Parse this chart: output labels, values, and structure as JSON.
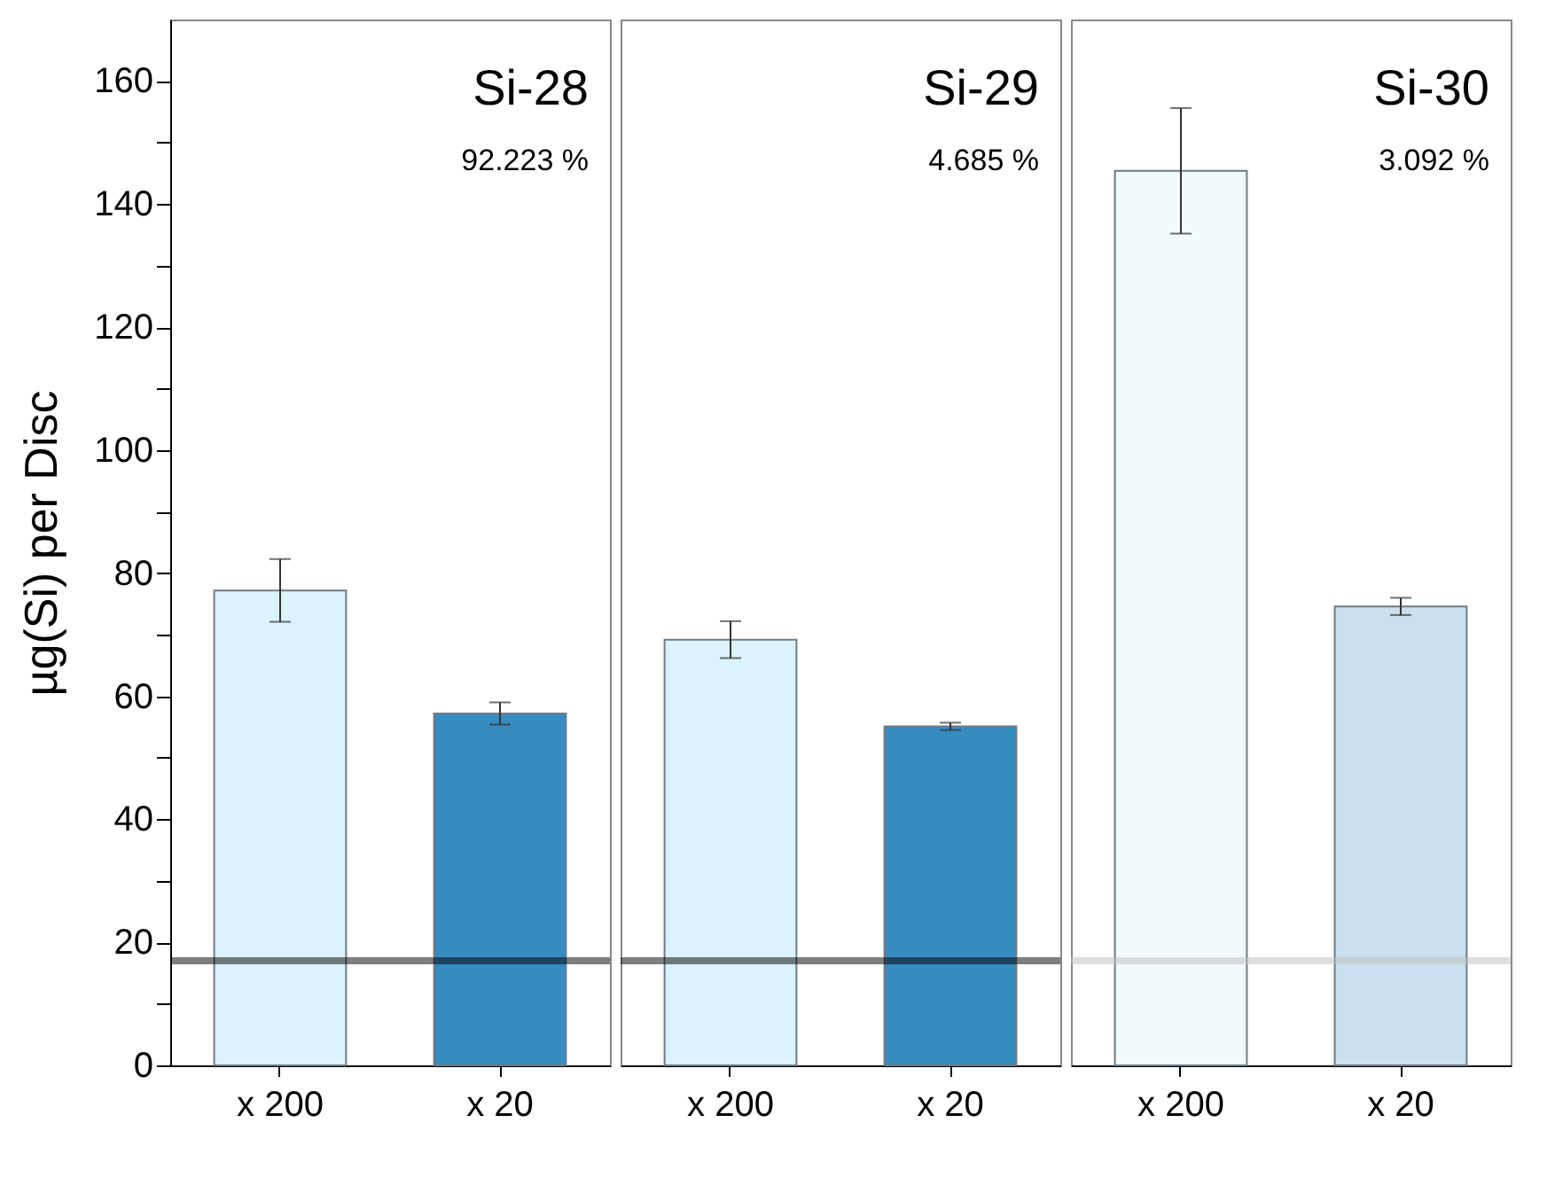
{
  "chart_data": [
    {
      "type": "bar",
      "title": "Si-28",
      "annotations": [
        "92.223 %"
      ],
      "ylabel": "µg(Si) per Disc",
      "categories": [
        "x 200",
        "x 20"
      ],
      "values": [
        77.2,
        57.2
      ],
      "colors": [
        "#dbf3fc",
        "#368bc1"
      ],
      "errors": [
        5.1,
        1.8
      ],
      "ylim": [
        0,
        170
      ],
      "yticks": [
        0,
        {
          "value": 10,
          "label": null
        },
        20,
        {
          "value": 30,
          "label": null
        },
        40,
        {
          "value": 50,
          "label": null
        },
        60,
        {
          "value": 70,
          "label": null
        },
        80,
        {
          "value": 90,
          "label": null
        },
        100,
        {
          "value": 110,
          "label": null
        },
        120,
        {
          "value": 130,
          "label": null
        },
        140,
        {
          "value": 150,
          "label": null
        },
        160
      ],
      "ref_lines": [
        {
          "axis": "y",
          "value": 17,
          "color": "#000000"
        }
      ],
      "grid": false
    },
    {
      "type": "bar",
      "title": "Si-29",
      "annotations": [
        "4.685 %"
      ],
      "categories": [
        "x 200",
        "x 20"
      ],
      "values": [
        69.2,
        55.1
      ],
      "colors": [
        "#dbf3fc",
        "#368bc1"
      ],
      "errors": [
        3.0,
        0.6
      ],
      "ylim": [
        0,
        170
      ],
      "tick_labels": "x",
      "ref_lines": [
        {
          "axis": "y",
          "value": 17,
          "color": "#000000"
        }
      ],
      "grid": false
    },
    {
      "type": "bar",
      "title": "Si-30",
      "annotations": [
        "3.092 %"
      ],
      "categories": [
        "x 200",
        "x 20"
      ],
      "values": [
        145.4,
        74.6
      ],
      "colors": [
        "#f2fafe",
        "#cae0ee"
      ],
      "errors": [
        10.2,
        1.4
      ],
      "ylim": [
        0,
        170
      ],
      "tick_labels": "x",
      "ref_lines": [
        {
          "axis": "y",
          "value": 17,
          "color": "#bdbdbd"
        }
      ],
      "grid": false
    }
  ]
}
